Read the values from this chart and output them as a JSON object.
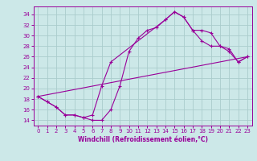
{
  "xlabel": "Windchill (Refroidissement éolien,°C)",
  "bg_color": "#cce8e8",
  "grid_color": "#aacccc",
  "line_color": "#990099",
  "xlim": [
    -0.5,
    23.5
  ],
  "ylim": [
    13.0,
    35.5
  ],
  "yticks": [
    14,
    16,
    18,
    20,
    22,
    24,
    26,
    28,
    30,
    32,
    34
  ],
  "xticks": [
    0,
    1,
    2,
    3,
    4,
    5,
    6,
    7,
    8,
    9,
    10,
    11,
    12,
    13,
    14,
    15,
    16,
    17,
    18,
    19,
    20,
    21,
    22,
    23
  ],
  "line1_x": [
    0,
    1,
    2,
    3,
    4,
    5,
    6,
    7,
    8,
    9,
    10,
    11,
    12,
    13,
    14,
    15,
    16,
    17,
    18,
    19,
    20,
    21,
    22,
    23
  ],
  "line1_y": [
    18.5,
    17.5,
    16.5,
    15.0,
    15.0,
    14.5,
    14.0,
    14.0,
    16.0,
    20.5,
    27.0,
    29.5,
    31.0,
    31.5,
    33.0,
    34.5,
    33.5,
    31.0,
    31.0,
    30.5,
    28.0,
    27.0,
    25.0,
    26.0
  ],
  "line2_x": [
    0,
    1,
    2,
    3,
    4,
    5,
    6,
    7,
    8,
    14,
    15,
    16,
    17,
    18,
    19,
    20,
    21,
    22,
    23
  ],
  "line2_y": [
    18.5,
    17.5,
    16.5,
    15.0,
    15.0,
    14.5,
    15.0,
    20.5,
    25.0,
    33.0,
    34.5,
    33.5,
    31.0,
    29.0,
    28.0,
    28.0,
    27.5,
    25.0,
    26.0
  ],
  "line3_x": [
    0,
    23
  ],
  "line3_y": [
    18.5,
    26.0
  ]
}
